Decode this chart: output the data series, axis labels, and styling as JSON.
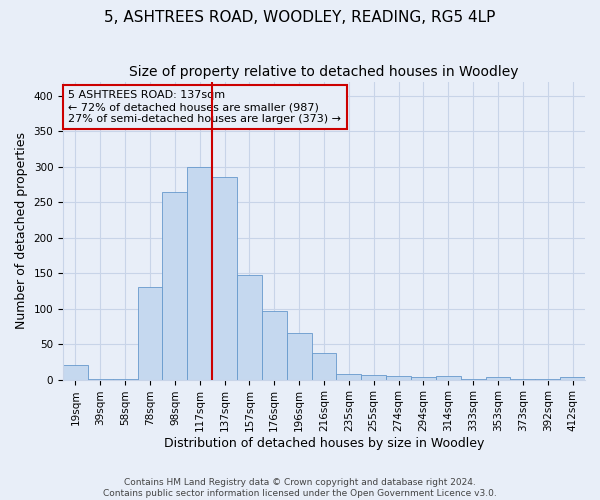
{
  "title": "5, ASHTREES ROAD, WOODLEY, READING, RG5 4LP",
  "subtitle": "Size of property relative to detached houses in Woodley",
  "xlabel": "Distribution of detached houses by size in Woodley",
  "ylabel": "Number of detached properties",
  "background_color": "#e8eef8",
  "plot_bg_color": "#e8eef8",
  "bar_color": "#c5d8ef",
  "bar_edge_color": "#6699cc",
  "annotation_line_color": "#cc0000",
  "annotation_box_color": "#cc0000",
  "annotation_text": "5 ASHTREES ROAD: 137sqm\n← 72% of detached houses are smaller (987)\n27% of semi-detached houses are larger (373) →",
  "property_bar_index": 6,
  "categories": [
    "19sqm",
    "39sqm",
    "58sqm",
    "78sqm",
    "98sqm",
    "117sqm",
    "137sqm",
    "157sqm",
    "176sqm",
    "196sqm",
    "216sqm",
    "235sqm",
    "255sqm",
    "274sqm",
    "294sqm",
    "314sqm",
    "333sqm",
    "353sqm",
    "373sqm",
    "392sqm",
    "412sqm"
  ],
  "values": [
    20,
    1,
    1,
    130,
    265,
    300,
    285,
    147,
    97,
    65,
    37,
    8,
    6,
    5,
    4,
    5,
    1,
    4,
    1,
    1,
    3
  ],
  "ylim": [
    0,
    420
  ],
  "yticks": [
    0,
    50,
    100,
    150,
    200,
    250,
    300,
    350,
    400
  ],
  "footer": "Contains HM Land Registry data © Crown copyright and database right 2024.\nContains public sector information licensed under the Open Government Licence v3.0.",
  "title_fontsize": 11,
  "subtitle_fontsize": 10,
  "tick_fontsize": 7.5,
  "ylabel_fontsize": 9,
  "xlabel_fontsize": 9,
  "grid_color": "#c8d4e8",
  "annotation_fontsize": 8
}
